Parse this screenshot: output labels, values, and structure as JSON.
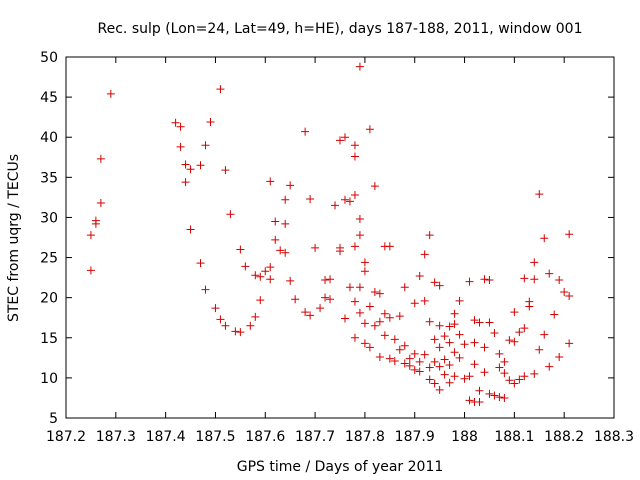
{
  "chart_data": {
    "type": "scatter",
    "title": "Rec. sulp (Lon=24, Lat=49, h=HE), days 187-188, 2011, window 001",
    "xlabel": "GPS time / Days of year 2011",
    "ylabel": "STEC from uqrg / TECUs",
    "xlim": [
      187.2,
      188.3
    ],
    "ylim": [
      5,
      50
    ],
    "xticks": [
      187.2,
      187.3,
      187.4,
      187.5,
      187.6,
      187.7,
      187.8,
      187.9,
      188.0,
      188.1,
      188.2,
      188.3
    ],
    "xtick_labels": [
      "187.2",
      "187.3",
      "187.4",
      "187.5",
      "187.6",
      "187.7",
      "187.8",
      "187.9",
      "188",
      "188.1",
      "188.2",
      "188.3"
    ],
    "yticks": [
      5,
      10,
      15,
      20,
      25,
      30,
      35,
      40,
      45,
      50
    ],
    "ytick_labels": [
      "5",
      "10",
      "15",
      "20",
      "25",
      "30",
      "35",
      "40",
      "45",
      "50"
    ],
    "grid": false,
    "marker": "+",
    "color": "#d40000",
    "points": [
      [
        187.25,
        27.8
      ],
      [
        187.25,
        23.4
      ],
      [
        187.26,
        29.2
      ],
      [
        187.26,
        29.6
      ],
      [
        187.27,
        31.8
      ],
      [
        187.27,
        37.3
      ],
      [
        187.29,
        45.4
      ],
      [
        187.42,
        41.8
      ],
      [
        187.43,
        41.3
      ],
      [
        187.43,
        38.8
      ],
      [
        187.44,
        36.6
      ],
      [
        187.44,
        34.4
      ],
      [
        187.45,
        36.0
      ],
      [
        187.45,
        28.5
      ],
      [
        187.47,
        36.5
      ],
      [
        187.47,
        24.3
      ],
      [
        187.48,
        39.0
      ],
      [
        187.48,
        21.0
      ],
      [
        187.49,
        41.9
      ],
      [
        187.5,
        18.7
      ],
      [
        187.51,
        46.0
      ],
      [
        187.51,
        17.3
      ],
      [
        187.52,
        35.9
      ],
      [
        187.52,
        16.5
      ],
      [
        187.53,
        30.4
      ],
      [
        187.54,
        15.8
      ],
      [
        187.55,
        15.7
      ],
      [
        187.55,
        26.0
      ],
      [
        187.56,
        23.9
      ],
      [
        187.57,
        16.5
      ],
      [
        187.58,
        17.6
      ],
      [
        187.58,
        22.8
      ],
      [
        187.59,
        22.6
      ],
      [
        187.59,
        19.7
      ],
      [
        187.6,
        23.3
      ],
      [
        187.61,
        23.8
      ],
      [
        187.61,
        34.5
      ],
      [
        187.61,
        22.3
      ],
      [
        187.62,
        29.5
      ],
      [
        187.62,
        27.2
      ],
      [
        187.63,
        25.9
      ],
      [
        187.64,
        32.2
      ],
      [
        187.64,
        25.6
      ],
      [
        187.64,
        29.2
      ],
      [
        187.65,
        34.0
      ],
      [
        187.65,
        22.1
      ],
      [
        187.66,
        19.8
      ],
      [
        187.68,
        40.7
      ],
      [
        187.68,
        18.2
      ],
      [
        187.69,
        32.3
      ],
      [
        187.69,
        17.8
      ],
      [
        187.7,
        26.2
      ],
      [
        187.71,
        18.7
      ],
      [
        187.72,
        22.2
      ],
      [
        187.72,
        20.0
      ],
      [
        187.73,
        19.8
      ],
      [
        187.73,
        22.3
      ],
      [
        187.74,
        31.5
      ],
      [
        187.75,
        39.6
      ],
      [
        187.75,
        26.2
      ],
      [
        187.75,
        25.8
      ],
      [
        187.76,
        40.0
      ],
      [
        187.76,
        32.2
      ],
      [
        187.76,
        17.4
      ],
      [
        187.77,
        32.0
      ],
      [
        187.77,
        21.3
      ],
      [
        187.78,
        39.0
      ],
      [
        187.78,
        37.6
      ],
      [
        187.78,
        32.8
      ],
      [
        187.78,
        26.4
      ],
      [
        187.78,
        19.5
      ],
      [
        187.78,
        15.0
      ],
      [
        187.79,
        48.8
      ],
      [
        187.79,
        29.8
      ],
      [
        187.79,
        27.8
      ],
      [
        187.79,
        21.3
      ],
      [
        187.79,
        18.1
      ],
      [
        187.8,
        14.3
      ],
      [
        187.8,
        24.4
      ],
      [
        187.8,
        23.3
      ],
      [
        187.8,
        16.8
      ],
      [
        187.81,
        41.0
      ],
      [
        187.81,
        18.9
      ],
      [
        187.81,
        13.8
      ],
      [
        187.82,
        33.9
      ],
      [
        187.82,
        20.7
      ],
      [
        187.82,
        16.5
      ],
      [
        187.83,
        17.0
      ],
      [
        187.83,
        12.6
      ],
      [
        187.83,
        20.5
      ],
      [
        187.84,
        26.4
      ],
      [
        187.84,
        18.0
      ],
      [
        187.84,
        15.3
      ],
      [
        187.85,
        26.4
      ],
      [
        187.85,
        12.4
      ],
      [
        187.85,
        17.5
      ],
      [
        187.86,
        14.8
      ],
      [
        187.86,
        12.1
      ],
      [
        187.87,
        17.7
      ],
      [
        187.87,
        13.5
      ],
      [
        187.88,
        21.3
      ],
      [
        187.88,
        11.8
      ],
      [
        187.88,
        14.0
      ],
      [
        187.89,
        12.4
      ],
      [
        187.89,
        11.5
      ],
      [
        187.9,
        19.3
      ],
      [
        187.9,
        13.0
      ],
      [
        187.9,
        11.0
      ],
      [
        187.91,
        22.7
      ],
      [
        187.91,
        12.0
      ],
      [
        187.91,
        10.8
      ],
      [
        187.92,
        25.4
      ],
      [
        187.92,
        19.6
      ],
      [
        187.92,
        12.9
      ],
      [
        187.93,
        17.0
      ],
      [
        187.93,
        11.3
      ],
      [
        187.93,
        9.8
      ],
      [
        187.93,
        27.8
      ],
      [
        187.94,
        21.9
      ],
      [
        187.94,
        14.8
      ],
      [
        187.94,
        12.0
      ],
      [
        187.94,
        9.3
      ],
      [
        187.95,
        21.5
      ],
      [
        187.95,
        16.5
      ],
      [
        187.95,
        13.8
      ],
      [
        187.95,
        11.4
      ],
      [
        187.95,
        8.5
      ],
      [
        187.96,
        15.2
      ],
      [
        187.96,
        12.3
      ],
      [
        187.96,
        10.4
      ],
      [
        187.97,
        16.4
      ],
      [
        187.97,
        14.4
      ],
      [
        187.97,
        11.6
      ],
      [
        187.97,
        9.4
      ],
      [
        187.98,
        18.0
      ],
      [
        187.98,
        16.7
      ],
      [
        187.98,
        13.2
      ],
      [
        187.98,
        10.2
      ],
      [
        187.99,
        19.6
      ],
      [
        187.99,
        15.4
      ],
      [
        187.99,
        12.5
      ],
      [
        188.0,
        14.2
      ],
      [
        188.0,
        9.9
      ],
      [
        188.01,
        22.0
      ],
      [
        188.01,
        10.2
      ],
      [
        188.01,
        7.2
      ],
      [
        188.02,
        17.2
      ],
      [
        188.02,
        14.4
      ],
      [
        188.02,
        11.7
      ],
      [
        188.02,
        7.0
      ],
      [
        188.03,
        16.9
      ],
      [
        188.03,
        8.4
      ],
      [
        188.03,
        7.0
      ],
      [
        188.04,
        22.3
      ],
      [
        188.04,
        13.8
      ],
      [
        188.04,
        10.7
      ],
      [
        188.05,
        22.2
      ],
      [
        188.05,
        16.9
      ],
      [
        188.05,
        8.0
      ],
      [
        188.06,
        15.6
      ],
      [
        188.06,
        7.8
      ],
      [
        188.07,
        13.0
      ],
      [
        188.07,
        11.3
      ],
      [
        188.07,
        7.6
      ],
      [
        188.08,
        12.0
      ],
      [
        188.08,
        10.6
      ],
      [
        188.08,
        7.5
      ],
      [
        188.09,
        14.7
      ],
      [
        188.09,
        9.7
      ],
      [
        188.1,
        18.2
      ],
      [
        188.1,
        14.5
      ],
      [
        188.1,
        9.3
      ],
      [
        188.11,
        15.7
      ],
      [
        188.11,
        9.8
      ],
      [
        188.12,
        22.4
      ],
      [
        188.12,
        16.2
      ],
      [
        188.12,
        10.2
      ],
      [
        188.13,
        19.5
      ],
      [
        188.13,
        18.9
      ],
      [
        188.14,
        24.4
      ],
      [
        188.14,
        22.3
      ],
      [
        188.14,
        10.5
      ],
      [
        188.15,
        32.9
      ],
      [
        188.15,
        13.5
      ],
      [
        188.16,
        27.4
      ],
      [
        188.16,
        15.4
      ],
      [
        188.17,
        23.0
      ],
      [
        188.17,
        11.4
      ],
      [
        188.18,
        17.9
      ],
      [
        188.19,
        22.2
      ],
      [
        188.19,
        12.6
      ],
      [
        188.2,
        20.7
      ],
      [
        188.21,
        27.9
      ],
      [
        188.21,
        20.2
      ],
      [
        188.21,
        14.3
      ]
    ]
  }
}
